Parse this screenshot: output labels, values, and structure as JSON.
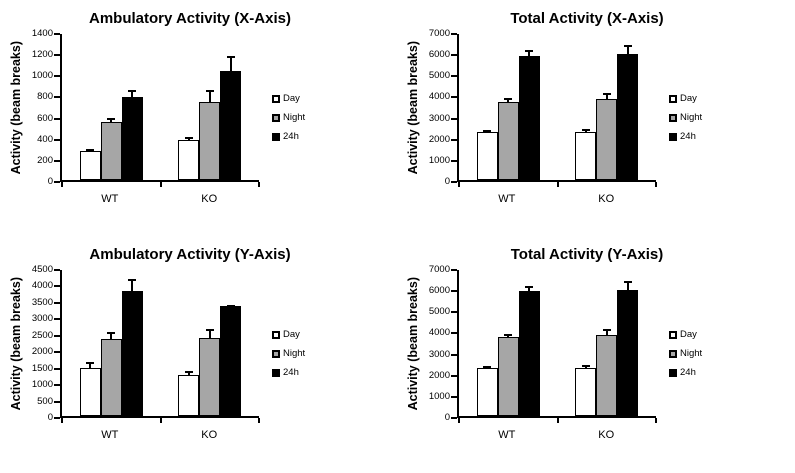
{
  "figure": {
    "background": "#ffffff",
    "axis_color": "#000000",
    "bar_border_color": "#000000",
    "error_bar_color": "#000000"
  },
  "chart_data": [
    {
      "type": "bar",
      "title": "Ambulatory Activity (X-Axis)",
      "ylabel": "Activity (beam breaks)",
      "xlabel": "",
      "ylim": [
        0,
        1400
      ],
      "ytick_step": 200,
      "yticks": [
        0,
        200,
        400,
        600,
        800,
        1000,
        1200,
        1400
      ],
      "categories": [
        "WT",
        "KO"
      ],
      "series": [
        {
          "name": "Day",
          "color": "#ffffff",
          "values": [
            270,
            375
          ],
          "errors": [
            35,
            40
          ]
        },
        {
          "name": "Night",
          "color": "#a6a6a6",
          "values": [
            550,
            735
          ],
          "errors": [
            50,
            130
          ]
        },
        {
          "name": "24h",
          "color": "#000000",
          "values": [
            790,
            1035
          ],
          "errors": [
            75,
            150
          ]
        }
      ],
      "legend": [
        "Day",
        "Night",
        "24h"
      ],
      "legend_position": "right",
      "grid": false,
      "error_bars": true
    },
    {
      "type": "bar",
      "title": "Total Activity (X-Axis)",
      "ylabel": "Activity (beam breaks)",
      "xlabel": "",
      "ylim": [
        0,
        7000
      ],
      "ytick_step": 1000,
      "yticks": [
        0,
        1000,
        2000,
        3000,
        4000,
        5000,
        6000,
        7000
      ],
      "categories": [
        "WT",
        "KO"
      ],
      "series": [
        {
          "name": "Day",
          "color": "#ffffff",
          "values": [
            2250,
            2250
          ],
          "errors": [
            150,
            200
          ]
        },
        {
          "name": "Night",
          "color": "#a6a6a6",
          "values": [
            3700,
            3820
          ],
          "errors": [
            250,
            350
          ]
        },
        {
          "name": "24h",
          "color": "#000000",
          "values": [
            5880,
            5950
          ],
          "errors": [
            300,
            480
          ]
        }
      ],
      "legend": [
        "Day",
        "Night",
        "24h"
      ],
      "legend_position": "right",
      "grid": false,
      "error_bars": true
    },
    {
      "type": "bar",
      "title": "Ambulatory Activity (Y-Axis)",
      "ylabel": "Activity (beam breaks)",
      "xlabel": "",
      "ylim": [
        0,
        4500
      ],
      "ytick_step": 500,
      "yticks": [
        0,
        500,
        1000,
        1500,
        2000,
        2500,
        3000,
        3500,
        4000,
        4500
      ],
      "categories": [
        "WT",
        "KO"
      ],
      "series": [
        {
          "name": "Day",
          "color": "#ffffff",
          "values": [
            1450,
            1250
          ],
          "errors": [
            230,
            150
          ]
        },
        {
          "name": "Night",
          "color": "#a6a6a6",
          "values": [
            2350,
            2370
          ],
          "errors": [
            220,
            310
          ]
        },
        {
          "name": "24h",
          "color": "#000000",
          "values": [
            3800,
            3340
          ],
          "errors": [
            400,
            80
          ]
        }
      ],
      "legend": [
        "Day",
        "Night",
        "24h"
      ],
      "legend_position": "right",
      "grid": false,
      "error_bars": true
    },
    {
      "type": "bar",
      "title": "Total Activity (Y-Axis)",
      "ylabel": "Activity (beam breaks)",
      "xlabel": "",
      "ylim": [
        0,
        7000
      ],
      "ytick_step": 1000,
      "yticks": [
        0,
        1000,
        2000,
        3000,
        4000,
        5000,
        6000,
        7000
      ],
      "categories": [
        "WT",
        "KO"
      ],
      "series": [
        {
          "name": "Day",
          "color": "#ffffff",
          "values": [
            2250,
            2250
          ],
          "errors": [
            150,
            200
          ]
        },
        {
          "name": "Night",
          "color": "#a6a6a6",
          "values": [
            3720,
            3820
          ],
          "errors": [
            200,
            350
          ]
        },
        {
          "name": "24h",
          "color": "#000000",
          "values": [
            5900,
            5970
          ],
          "errors": [
            300,
            450
          ]
        }
      ],
      "legend": [
        "Day",
        "Night",
        "24h"
      ],
      "legend_position": "right",
      "grid": false,
      "error_bars": true
    }
  ]
}
